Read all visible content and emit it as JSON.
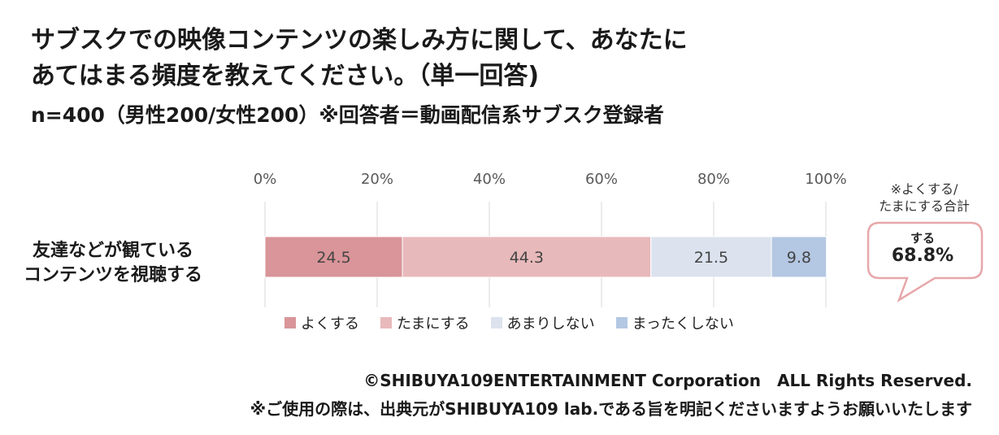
{
  "title_line1": "サブスクでの映像コンテンツの楽しみ方に関して、あなたに",
  "title_line2": "あてはまる頻度を教えてください。（単一回答)",
  "subtitle": "n=400（男性200/女性200）※回答者＝動画配信系サブスク登録者",
  "category_line1": "友達などが観ている",
  "category_line2": "コンテンツを視聴する",
  "callout": {
    "note_line1": "※よくする/",
    "note_line2": "たまにする合計",
    "label": "する",
    "value": "68.8%"
  },
  "footer": {
    "copyright": "©SHIBUYA109ENTERTAINMENT Corporation　ALL Rights Reserved.",
    "notice": "※ご使用の際は、出典元がSHIBUYA109 lab.である旨を明記くださいますようお願いいたします"
  },
  "colors": {
    "often": "#d99599",
    "sometimes": "#e8b9bb",
    "rarely": "#dce3ee",
    "never": "#b4c7e3",
    "grid": "#d9d9d9",
    "bubble_border": "#e7a7aa"
  },
  "chart_data": {
    "type": "bar",
    "orientation": "horizontal",
    "stacked": true,
    "categories": [
      "友達などが観ている\nコンテンツを視聴する"
    ],
    "series": [
      {
        "name": "よくする",
        "values": [
          24.5
        ]
      },
      {
        "name": "たまにする",
        "values": [
          44.3
        ]
      },
      {
        "name": "あまりしない",
        "values": [
          21.5
        ]
      },
      {
        "name": "まったくしない",
        "values": [
          9.8
        ]
      }
    ],
    "xlim": [
      0,
      100
    ],
    "xticks": [
      "0%",
      "20%",
      "40%",
      "60%",
      "80%",
      "100%"
    ],
    "grid": true,
    "legend": "bottom"
  }
}
